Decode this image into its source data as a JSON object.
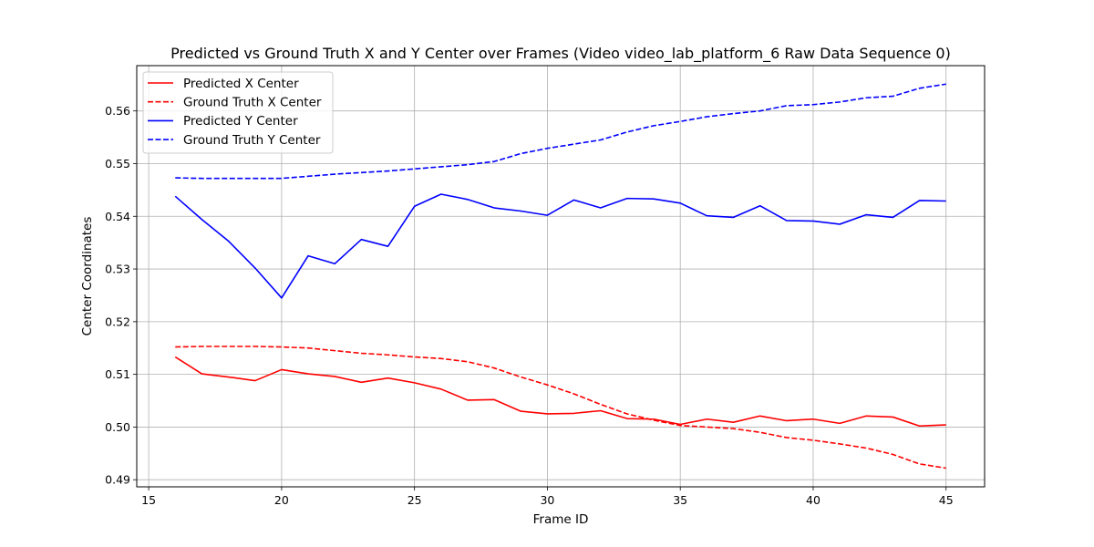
{
  "chart_data": {
    "type": "line",
    "title": "Predicted vs Ground Truth X and Y Center over Frames (Video video_lab_platform_6 Raw Data Sequence 0)",
    "xlabel": "Frame ID",
    "ylabel": "Center Coordinates",
    "xlim": [
      14.55,
      46.45
    ],
    "ylim": [
      0.48865,
      0.5686
    ],
    "xticks": [
      15,
      20,
      25,
      30,
      35,
      40,
      45
    ],
    "yticks": [
      0.49,
      0.5,
      0.51,
      0.52,
      0.53,
      0.54,
      0.55,
      0.56
    ],
    "xtick_labels": [
      "15",
      "20",
      "25",
      "30",
      "35",
      "40",
      "45"
    ],
    "ytick_labels": [
      "0.49",
      "0.50",
      "0.51",
      "0.52",
      "0.53",
      "0.54",
      "0.55",
      "0.56"
    ],
    "grid": true,
    "legend_position": "top-left",
    "x": [
      16,
      17,
      18,
      19,
      20,
      21,
      22,
      23,
      24,
      25,
      26,
      27,
      28,
      29,
      30,
      31,
      32,
      33,
      34,
      35,
      36,
      37,
      38,
      39,
      40,
      41,
      42,
      43,
      44,
      45
    ],
    "series": [
      {
        "name": "Predicted X Center",
        "color": "#ff0000",
        "style": "solid",
        "values": [
          0.5133,
          0.5101,
          0.5095,
          0.5088,
          0.5109,
          0.5101,
          0.5096,
          0.5085,
          0.5093,
          0.5084,
          0.5072,
          0.5051,
          0.5052,
          0.503,
          0.5025,
          0.5026,
          0.5031,
          0.5016,
          0.5015,
          0.5005,
          0.5015,
          0.5009,
          0.5021,
          0.5012,
          0.5015,
          0.5007,
          0.5021,
          0.5019,
          0.5002,
          0.5004
        ]
      },
      {
        "name": "Ground Truth X Center",
        "color": "#ff0000",
        "style": "dashed",
        "values": [
          0.5152,
          0.5153,
          0.5153,
          0.5153,
          0.5152,
          0.515,
          0.5145,
          0.514,
          0.5137,
          0.5133,
          0.513,
          0.5124,
          0.5112,
          0.5095,
          0.508,
          0.5063,
          0.5043,
          0.5025,
          0.5013,
          0.5003,
          0.5,
          0.4997,
          0.499,
          0.498,
          0.4975,
          0.4968,
          0.496,
          0.4948,
          0.493,
          0.4922
        ]
      },
      {
        "name": "Predicted Y Center",
        "color": "#0000ff",
        "style": "solid",
        "values": [
          0.5438,
          0.5394,
          0.5353,
          0.5302,
          0.5245,
          0.5325,
          0.531,
          0.5356,
          0.5343,
          0.5419,
          0.5442,
          0.5432,
          0.5416,
          0.541,
          0.5402,
          0.5431,
          0.5416,
          0.5434,
          0.5433,
          0.5425,
          0.5401,
          0.5398,
          0.542,
          0.5392,
          0.5391,
          0.5385,
          0.5403,
          0.5398,
          0.543,
          0.5429
        ]
      },
      {
        "name": "Ground Truth Y Center",
        "color": "#0000ff",
        "style": "dashed",
        "values": [
          0.5473,
          0.5472,
          0.5472,
          0.5472,
          0.5472,
          0.5476,
          0.548,
          0.5483,
          0.5486,
          0.549,
          0.5494,
          0.5498,
          0.5504,
          0.5519,
          0.5529,
          0.5537,
          0.5545,
          0.556,
          0.5572,
          0.558,
          0.5589,
          0.5595,
          0.56,
          0.561,
          0.5612,
          0.5617,
          0.5625,
          0.5628,
          0.5643,
          0.5651
        ]
      }
    ]
  }
}
